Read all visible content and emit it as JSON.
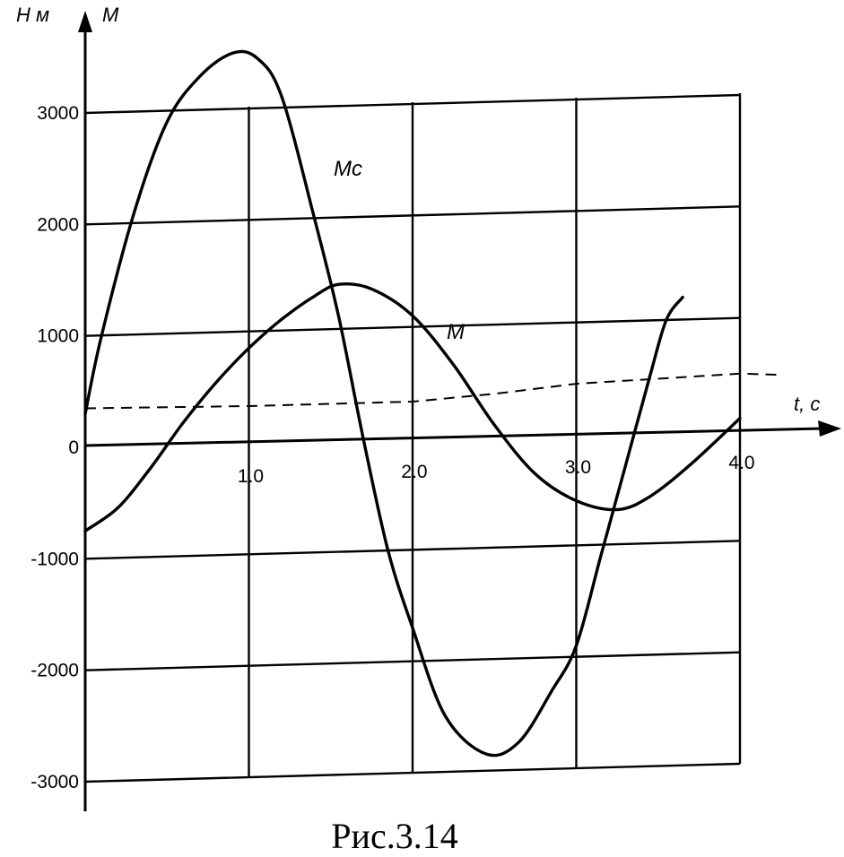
{
  "caption": "Рис.3.14",
  "chart_data": {
    "type": "line",
    "title": "",
    "y_axis_unit": "Н м",
    "y_axis_symbol": "М",
    "x_axis_label": "t, c",
    "xlim": [
      0,
      4.0
    ],
    "ylim": [
      -3000,
      3000
    ],
    "x_ticks": [
      {
        "value": 1.0,
        "label": "1.0"
      },
      {
        "value": 2.0,
        "label": "2.0"
      },
      {
        "value": 3.0,
        "label": "3.0"
      },
      {
        "value": 4.0,
        "label": "4.0"
      }
    ],
    "y_ticks": [
      {
        "value": 3000,
        "label": "3000"
      },
      {
        "value": 2000,
        "label": "2000"
      },
      {
        "value": 1000,
        "label": "1000"
      },
      {
        "value": 0,
        "label": "0"
      },
      {
        "value": -1000,
        "label": "-1000"
      },
      {
        "value": -2000,
        "label": "-2000"
      },
      {
        "value": -3000,
        "label": "-3000"
      }
    ],
    "grid": true,
    "series": [
      {
        "name": "Мс",
        "points": [
          [
            0.0,
            300
          ],
          [
            0.1,
            1000
          ],
          [
            0.3,
            2100
          ],
          [
            0.5,
            2900
          ],
          [
            0.7,
            3300
          ],
          [
            0.9,
            3500
          ],
          [
            1.05,
            3450
          ],
          [
            1.2,
            3100
          ],
          [
            1.4,
            2000
          ],
          [
            1.55,
            1100
          ],
          [
            1.7,
            0
          ],
          [
            1.85,
            -1000
          ],
          [
            2.0,
            -1700
          ],
          [
            2.2,
            -2500
          ],
          [
            2.45,
            -2850
          ],
          [
            2.65,
            -2750
          ],
          [
            2.85,
            -2300
          ],
          [
            3.0,
            -1900
          ],
          [
            3.15,
            -1100
          ],
          [
            3.3,
            -300
          ],
          [
            3.45,
            500
          ],
          [
            3.55,
            1000
          ],
          [
            3.65,
            1200
          ]
        ]
      },
      {
        "name": "М",
        "points": [
          [
            0.0,
            -750
          ],
          [
            0.2,
            -550
          ],
          [
            0.4,
            -200
          ],
          [
            0.6,
            200
          ],
          [
            0.8,
            550
          ],
          [
            1.0,
            850
          ],
          [
            1.2,
            1100
          ],
          [
            1.4,
            1300
          ],
          [
            1.55,
            1400
          ],
          [
            1.75,
            1350
          ],
          [
            2.0,
            1100
          ],
          [
            2.25,
            650
          ],
          [
            2.5,
            100
          ],
          [
            2.75,
            -350
          ],
          [
            3.0,
            -600
          ],
          [
            3.25,
            -690
          ],
          [
            3.45,
            -580
          ],
          [
            3.7,
            -300
          ],
          [
            4.0,
            100
          ]
        ]
      },
      {
        "name": "",
        "style": "dashed",
        "points": [
          [
            0.0,
            350
          ],
          [
            1.0,
            330
          ],
          [
            2.0,
            330
          ],
          [
            2.5,
            380
          ],
          [
            3.0,
            450
          ],
          [
            4.0,
            500
          ],
          [
            4.25,
            480
          ]
        ]
      }
    ]
  }
}
